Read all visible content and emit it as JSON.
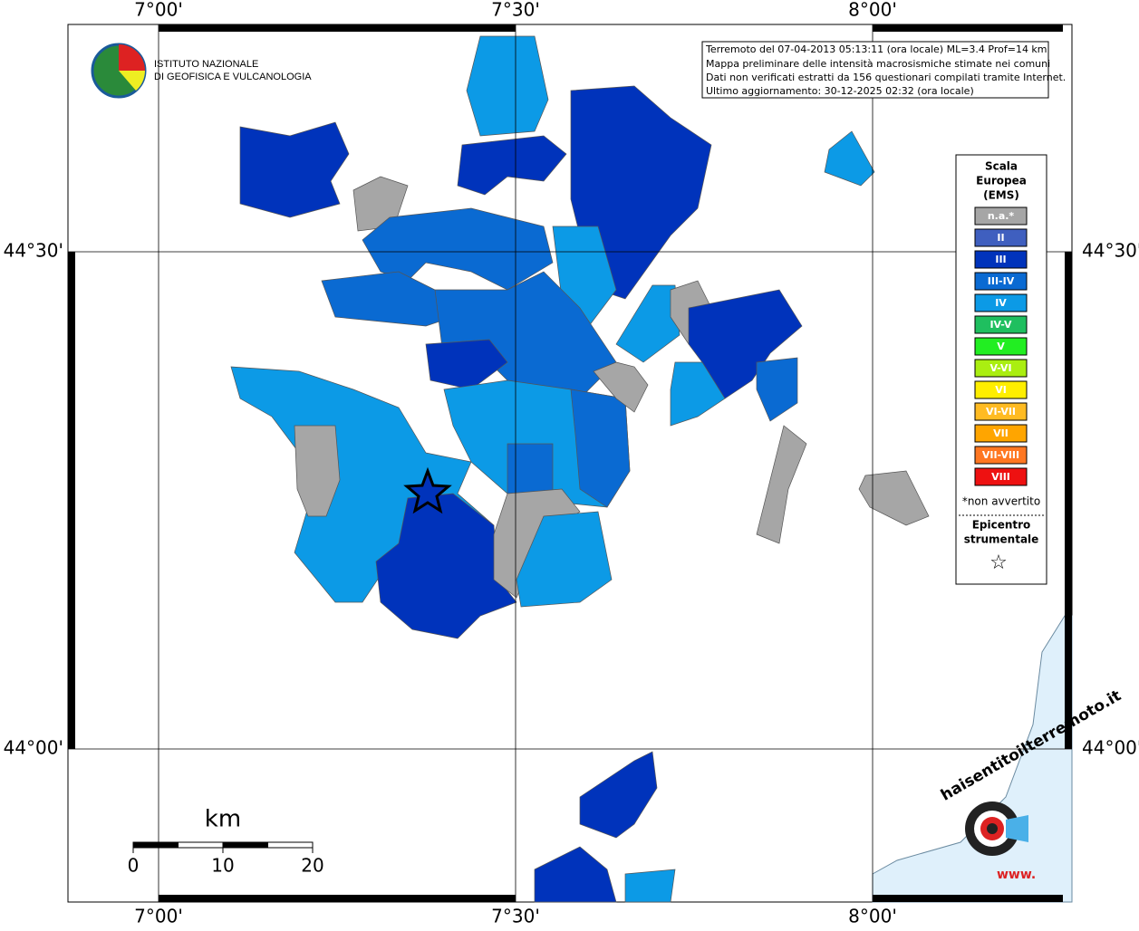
{
  "header": {
    "lines": [
      "Terremoto del 07-04-2013 05:13:11 (ora locale) ML=3.4 Prof=14 km",
      "Mappa preliminare delle intensità macrosismiche stimate nei comuni",
      "Dati non verificati estratti da 156 questionari compilati tramite Internet.",
      "Ultimo aggiornamento: 30-12-2025 02:32 (ora locale)"
    ]
  },
  "logo": {
    "lines": [
      "ISTITUTO NAZIONALE",
      "DI GEOFISICA E VULCANOLOGIA"
    ]
  },
  "axes": {
    "x_labels": [
      "7°00'",
      "7°30'",
      "8°00'"
    ],
    "y_labels": [
      "44°30'",
      "44°00'"
    ]
  },
  "legend": {
    "title": [
      "Scala",
      "Europea",
      "(EMS)"
    ],
    "items": [
      {
        "label": "n.a.*",
        "color": "#a6a6a6"
      },
      {
        "label": "II",
        "color": "#3f5fbf"
      },
      {
        "label": "III",
        "color": "#0033bb"
      },
      {
        "label": "III-IV",
        "color": "#0a6ad2"
      },
      {
        "label": "IV",
        "color": "#0c9ae6"
      },
      {
        "label": "IV-V",
        "color": "#1fbf5f"
      },
      {
        "label": "V",
        "color": "#22ee22"
      },
      {
        "label": "V-VI",
        "color": "#aaee11"
      },
      {
        "label": "VI",
        "color": "#ffee00"
      },
      {
        "label": "VI-VII",
        "color": "#ffbb22"
      },
      {
        "label": "VII",
        "color": "#ffa500"
      },
      {
        "label": "VII-VIII",
        "color": "#ff7722"
      },
      {
        "label": "VIII",
        "color": "#ee1111"
      }
    ],
    "note": "*non avvertito",
    "epicenter": [
      "Epicentro",
      "strumentale"
    ],
    "star": "☆"
  },
  "scale": {
    "unit": "km",
    "labels": [
      "0",
      "10",
      "20"
    ]
  },
  "watermark": {
    "site": "haisentitoilterremoto.it",
    "prefix": "www."
  }
}
